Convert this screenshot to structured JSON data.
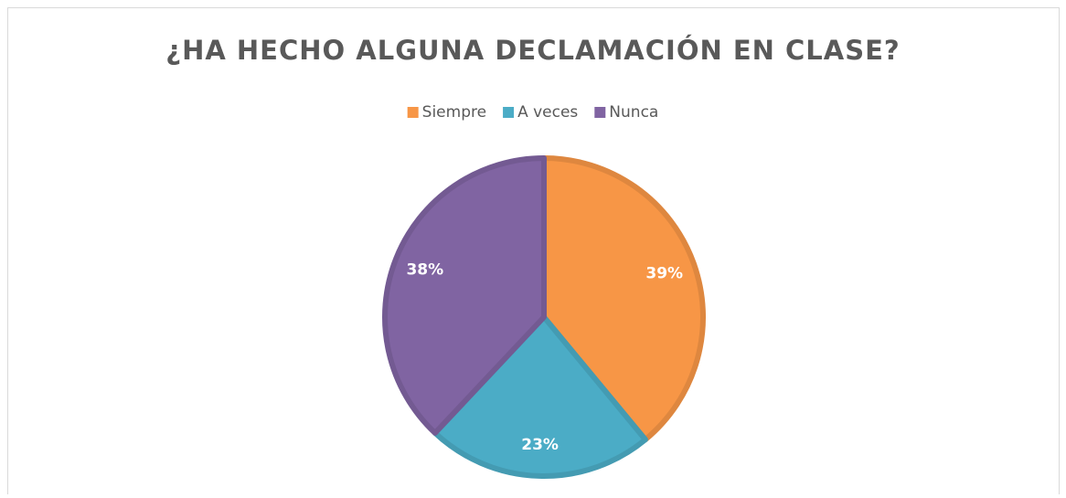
{
  "chart_data": {
    "type": "pie",
    "title": "¿HA HECHO ALGUNA DECLAMACIÓN EN CLASE?",
    "categories": [
      "Siempre",
      "A veces",
      "Nunca"
    ],
    "values": [
      39,
      23,
      38
    ],
    "value_labels": [
      "39%",
      "23%",
      "38%"
    ],
    "colors": [
      "#F79646",
      "#4BACC6",
      "#8064A2"
    ],
    "legend": "top"
  }
}
